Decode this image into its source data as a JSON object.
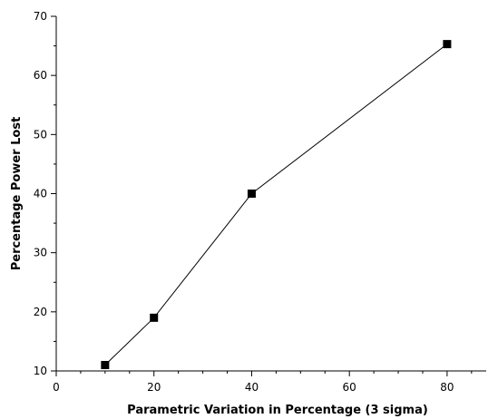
{
  "chart_data": {
    "type": "line",
    "title": "",
    "xlabel": "Parametric Variation in Percentage (3 sigma)",
    "ylabel": "Percentage Power Lost",
    "xlim": [
      0,
      88
    ],
    "ylim": [
      10,
      70
    ],
    "x_ticks": [
      0,
      20,
      40,
      60,
      80
    ],
    "y_ticks": [
      10,
      20,
      30,
      40,
      50,
      60,
      70
    ],
    "x_minor_step": 5,
    "y_minor_step": 5,
    "grid": false,
    "legend": "none",
    "series": [
      {
        "x": [
          10,
          20,
          40,
          80
        ],
        "y": [
          11,
          19,
          40,
          65.3
        ],
        "marker": "square",
        "color": "#000000"
      }
    ]
  }
}
